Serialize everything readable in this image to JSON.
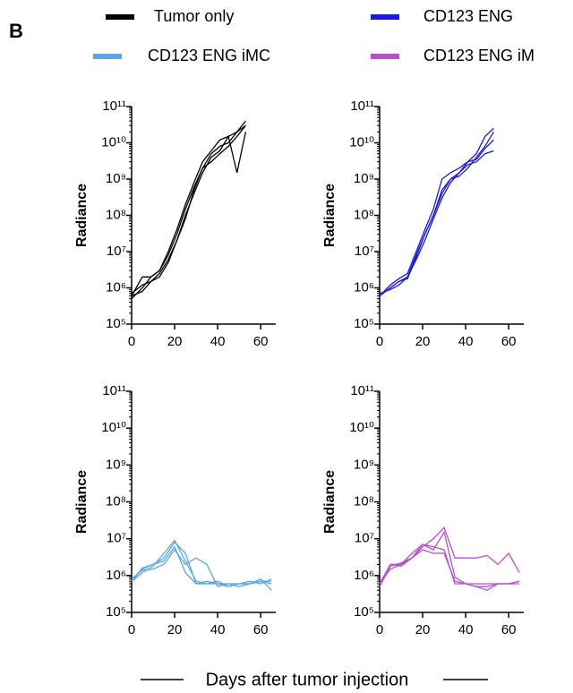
{
  "panel_label": "B",
  "legend": [
    {
      "name": "Tumor only",
      "color": "#000000"
    },
    {
      "name": "CD123 ENG",
      "color": "#1a1adb"
    },
    {
      "name": "CD123 ENG iMC",
      "color": "#5aa5ea"
    },
    {
      "name": "CD123 ENG iM",
      "color": "#b84fd0"
    }
  ],
  "x_label": "Days after tumor injection",
  "chart_data": [
    {
      "type": "line",
      "y_label": "Radiance",
      "log_y": true,
      "xlim": [
        0,
        67
      ],
      "xticks": [
        0,
        20,
        40,
        60
      ],
      "ylim": [
        100000.0,
        100000000000.0
      ],
      "yticks": [
        {
          "value": 100000.0,
          "label": "10⁵"
        },
        {
          "value": 1000000.0,
          "label": "10⁶"
        },
        {
          "value": 10000000.0,
          "label": "10⁷"
        },
        {
          "value": 100000000.0,
          "label": "10⁸"
        },
        {
          "value": 1000000000.0,
          "label": "10⁹"
        },
        {
          "value": 10000000000.0,
          "label": "10¹⁰"
        },
        {
          "value": 100000000000.0,
          "label": "10¹¹"
        }
      ],
      "x": [
        0,
        5,
        9,
        13,
        17,
        21,
        25,
        29,
        33,
        37,
        41,
        45,
        49,
        53
      ],
      "series": [
        {
          "color": "#000000",
          "values": [
            500000.0,
            1000000.0,
            2000000.0,
            3000000.0,
            10000000.0,
            40000000.0,
            200000000.0,
            800000000.0,
            3000000000.0,
            6000000000.0,
            12000000000.0,
            15000000000.0,
            20000000000.0,
            40000000000.0
          ]
        },
        {
          "color": "#000000",
          "values": [
            600000.0,
            2000000.0,
            2000000.0,
            3000000.0,
            8000000.0,
            30000000.0,
            150000000.0,
            600000000.0,
            2000000000.0,
            5000000000.0,
            8000000000.0,
            10000000000.0,
            20000000000.0,
            30000000000.0
          ]
        },
        {
          "color": "#000000",
          "values": [
            700000.0,
            1200000.0,
            1500000.0,
            2500000.0,
            6000000.0,
            20000000.0,
            100000000.0,
            400000000.0,
            1500000000.0,
            4000000000.0,
            6000000000.0,
            15000000000.0,
            1500000000.0,
            20000000000.0
          ]
        },
        {
          "color": "#000000",
          "values": [
            600000.0,
            800000.0,
            1500000.0,
            2000000.0,
            5000000.0,
            20000000.0,
            80000000.0,
            500000000.0,
            2000000000.0,
            3000000000.0,
            5000000000.0,
            8000000000.0,
            15000000000.0,
            30000000000.0
          ]
        }
      ]
    },
    {
      "type": "line",
      "y_label": "Radiance",
      "log_y": true,
      "xlim": [
        0,
        67
      ],
      "xticks": [
        0,
        20,
        40,
        60
      ],
      "ylim": [
        100000.0,
        100000000000.0
      ],
      "yticks": [
        {
          "value": 100000.0,
          "label": "10⁵"
        },
        {
          "value": 1000000.0,
          "label": "10⁶"
        },
        {
          "value": 10000000.0,
          "label": "10⁷"
        },
        {
          "value": 100000000.0,
          "label": "10⁸"
        },
        {
          "value": 1000000000.0,
          "label": "10⁹"
        },
        {
          "value": 10000000000.0,
          "label": "10¹⁰"
        },
        {
          "value": 100000000000.0,
          "label": "10¹¹"
        }
      ],
      "x": [
        0,
        5,
        9,
        13,
        17,
        21,
        25,
        29,
        33,
        37,
        41,
        45,
        49,
        53
      ],
      "series": [
        {
          "color": "#1a1adb",
          "values": [
            600000.0,
            1000000.0,
            1500000.0,
            2000000.0,
            8000000.0,
            30000000.0,
            100000000.0,
            400000000.0,
            1000000000.0,
            1200000000.0,
            2000000000.0,
            4000000000.0,
            8000000000.0,
            20000000000.0
          ]
        },
        {
          "color": "#1a1adb",
          "values": [
            600000.0,
            1200000.0,
            1800000.0,
            2500000.0,
            10000000.0,
            40000000.0,
            150000000.0,
            1000000000.0,
            1500000000.0,
            2000000000.0,
            3000000000.0,
            5000000000.0,
            15000000000.0,
            25000000000.0
          ]
        },
        {
          "color": "#1a1adb",
          "values": [
            700000.0,
            900000.0,
            1200000.0,
            2000000.0,
            6000000.0,
            20000000.0,
            80000000.0,
            300000000.0,
            800000000.0,
            1500000000.0,
            2500000000.0,
            3000000000.0,
            5000000000.0,
            6000000000.0
          ]
        },
        {
          "color": "#1a1adb",
          "values": [
            600000.0,
            1000000.0,
            1500000.0,
            1800000.0,
            7000000.0,
            30000000.0,
            100000000.0,
            500000000.0,
            1000000000.0,
            1500000000.0,
            3000000000.0,
            3500000000.0,
            7000000000.0,
            12000000000.0
          ]
        }
      ]
    },
    {
      "type": "line",
      "y_label": "Radiance",
      "log_y": true,
      "xlim": [
        0,
        67
      ],
      "xticks": [
        0,
        20,
        40,
        60
      ],
      "ylim": [
        100000.0,
        100000000000.0
      ],
      "yticks": [
        {
          "value": 100000.0,
          "label": "10⁵"
        },
        {
          "value": 1000000.0,
          "label": "10⁶"
        },
        {
          "value": 10000000.0,
          "label": "10⁷"
        },
        {
          "value": 100000000.0,
          "label": "10⁸"
        },
        {
          "value": 1000000000.0,
          "label": "10⁹"
        },
        {
          "value": 10000000000.0,
          "label": "10¹⁰"
        },
        {
          "value": 100000000000.0,
          "label": "10¹¹"
        }
      ],
      "x": [
        0,
        5,
        10,
        15,
        20,
        25,
        30,
        35,
        40,
        45,
        50,
        55,
        60,
        65
      ],
      "series": [
        {
          "color": "#5aa5ea",
          "values": [
            700000.0,
            1500000.0,
            2000000.0,
            3000000.0,
            8000000.0,
            4000000.0,
            600000.0,
            600000.0,
            700000.0,
            500000.0,
            600000.0,
            600000.0,
            700000.0,
            700000.0
          ]
        },
        {
          "color": "#5aa5ea",
          "values": [
            700000.0,
            1200000.0,
            1800000.0,
            4000000.0,
            9000000.0,
            2500000.0,
            700000.0,
            600000.0,
            600000.0,
            600000.0,
            600000.0,
            600000.0,
            800000.0,
            400000.0
          ]
        },
        {
          "color": "#5aa5ea",
          "values": [
            800000.0,
            1400000.0,
            1500000.0,
            2000000.0,
            5000000.0,
            2000000.0,
            3000000.0,
            2000000.0,
            500000.0,
            600000.0,
            500000.0,
            600000.0,
            700000.0,
            600000.0
          ]
        },
        {
          "color": "#5aa5ea",
          "values": [
            700000.0,
            1600000.0,
            2000000.0,
            2500000.0,
            6000000.0,
            1200000.0,
            600000.0,
            700000.0,
            600000.0,
            500000.0,
            600000.0,
            700000.0,
            600000.0,
            800000.0
          ]
        }
      ]
    },
    {
      "type": "line",
      "y_label": "Radiance",
      "log_y": true,
      "xlim": [
        0,
        67
      ],
      "xticks": [
        0,
        20,
        40,
        60
      ],
      "ylim": [
        100000.0,
        100000000000.0
      ],
      "yticks": [
        {
          "value": 100000.0,
          "label": "10⁵"
        },
        {
          "value": 1000000.0,
          "label": "10⁶"
        },
        {
          "value": 10000000.0,
          "label": "10⁷"
        },
        {
          "value": 100000000.0,
          "label": "10⁸"
        },
        {
          "value": 1000000000.0,
          "label": "10⁹"
        },
        {
          "value": 10000000000.0,
          "label": "10¹⁰"
        },
        {
          "value": 100000000000.0,
          "label": "10¹¹"
        }
      ],
      "x": [
        0,
        5,
        10,
        15,
        20,
        25,
        30,
        35,
        40,
        45,
        50,
        55,
        60,
        65
      ],
      "series": [
        {
          "color": "#b84fd0",
          "values": [
            500000.0,
            2000000.0,
            2000000.0,
            4000000.0,
            7000000.0,
            5000000.0,
            15000000.0,
            900000.0,
            600000.0,
            600000.0,
            600000.0,
            600000.0,
            600000.0,
            700000.0
          ]
        },
        {
          "color": "#b84fd0",
          "values": [
            600000.0,
            1500000.0,
            2000000.0,
            3000000.0,
            6000000.0,
            10000000.0,
            20000000.0,
            3000000.0,
            3000000.0,
            3000000.0,
            3500000.0,
            2000000.0,
            4000000.0,
            1200000.0
          ]
        },
        {
          "color": "#b84fd0",
          "values": [
            600000.0,
            2000000.0,
            1800000.0,
            3000000.0,
            5000000.0,
            4000000.0,
            4000000.0,
            700000.0,
            600000.0,
            500000.0,
            500000.0,
            600000.0,
            600000.0,
            600000.0
          ]
        },
        {
          "color": "#b84fd0",
          "values": [
            500000.0,
            1800000.0,
            2200000.0,
            3000000.0,
            7000000.0,
            6000000.0,
            5000000.0,
            600000.0,
            600000.0,
            500000.0,
            400000.0,
            600000.0,
            600000.0,
            700000.0
          ]
        }
      ]
    }
  ]
}
